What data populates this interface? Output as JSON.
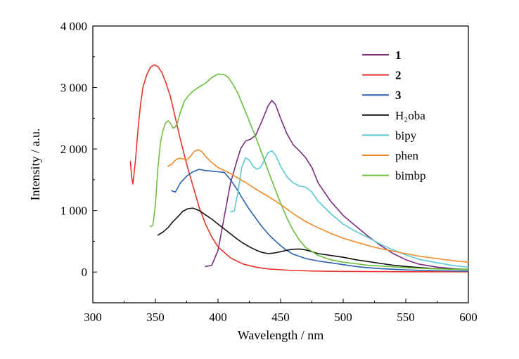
{
  "chart_data": {
    "type": "line",
    "xlabel": "Wavelength / nm",
    "ylabel": "Intensity / a.u.",
    "xlim": [
      300,
      600
    ],
    "ylim": [
      -500,
      4000
    ],
    "xticks": [
      300,
      350,
      400,
      450,
      500,
      550,
      600
    ],
    "yticks": [
      0,
      1000,
      2000,
      3000,
      4000
    ],
    "xtick_labels": [
      "300",
      "350",
      "400",
      "450",
      "500",
      "550",
      "600"
    ],
    "ytick_labels": [
      "0",
      "1 000",
      "2 000",
      "3 000",
      "4 000"
    ],
    "grid": false,
    "legend_position": "top-right",
    "series": [
      {
        "name": "1",
        "bold": true,
        "color": "#7b2d7f",
        "points": [
          [
            390,
            90
          ],
          [
            395,
            110
          ],
          [
            400,
            350
          ],
          [
            405,
            900
          ],
          [
            410,
            1450
          ],
          [
            415,
            1800
          ],
          [
            418,
            2000
          ],
          [
            422,
            2130
          ],
          [
            426,
            2160
          ],
          [
            430,
            2220
          ],
          [
            435,
            2450
          ],
          [
            440,
            2700
          ],
          [
            443,
            2790
          ],
          [
            446,
            2720
          ],
          [
            450,
            2500
          ],
          [
            455,
            2250
          ],
          [
            460,
            2070
          ],
          [
            465,
            1970
          ],
          [
            470,
            1860
          ],
          [
            475,
            1700
          ],
          [
            480,
            1450
          ],
          [
            490,
            1150
          ],
          [
            500,
            920
          ],
          [
            510,
            750
          ],
          [
            520,
            580
          ],
          [
            530,
            430
          ],
          [
            540,
            300
          ],
          [
            550,
            200
          ],
          [
            560,
            130
          ],
          [
            575,
            80
          ],
          [
            590,
            50
          ],
          [
            600,
            40
          ]
        ]
      },
      {
        "name": "2",
        "bold": true,
        "color": "#e8352a",
        "points": [
          [
            330,
            1800
          ],
          [
            331,
            1550
          ],
          [
            332,
            1430
          ],
          [
            334,
            1800
          ],
          [
            336,
            2300
          ],
          [
            338,
            2700
          ],
          [
            340,
            3000
          ],
          [
            343,
            3200
          ],
          [
            346,
            3330
          ],
          [
            349,
            3370
          ],
          [
            352,
            3340
          ],
          [
            355,
            3250
          ],
          [
            358,
            3100
          ],
          [
            362,
            2850
          ],
          [
            366,
            2500
          ],
          [
            370,
            2150
          ],
          [
            375,
            1750
          ],
          [
            380,
            1400
          ],
          [
            385,
            1050
          ],
          [
            390,
            780
          ],
          [
            395,
            570
          ],
          [
            400,
            410
          ],
          [
            410,
            230
          ],
          [
            420,
            130
          ],
          [
            430,
            80
          ],
          [
            440,
            50
          ],
          [
            460,
            25
          ],
          [
            480,
            15
          ],
          [
            500,
            10
          ],
          [
            550,
            5
          ],
          [
            600,
            5
          ]
        ]
      },
      {
        "name": "3",
        "bold": true,
        "color": "#2b5fae",
        "points": [
          [
            363,
            1320
          ],
          [
            366,
            1300
          ],
          [
            370,
            1450
          ],
          [
            375,
            1560
          ],
          [
            380,
            1630
          ],
          [
            385,
            1670
          ],
          [
            390,
            1650
          ],
          [
            395,
            1640
          ],
          [
            400,
            1630
          ],
          [
            405,
            1620
          ],
          [
            410,
            1500
          ],
          [
            415,
            1350
          ],
          [
            420,
            1180
          ],
          [
            425,
            1020
          ],
          [
            430,
            880
          ],
          [
            435,
            740
          ],
          [
            440,
            620
          ],
          [
            445,
            520
          ],
          [
            450,
            430
          ],
          [
            455,
            350
          ],
          [
            460,
            290
          ],
          [
            470,
            220
          ],
          [
            480,
            180
          ],
          [
            490,
            150
          ],
          [
            500,
            120
          ],
          [
            510,
            90
          ],
          [
            520,
            70
          ],
          [
            530,
            55
          ],
          [
            550,
            35
          ],
          [
            575,
            20
          ],
          [
            600,
            15
          ]
        ]
      },
      {
        "name": "H₂oba",
        "bold": false,
        "color": "#111111",
        "points": [
          [
            352,
            600
          ],
          [
            356,
            650
          ],
          [
            360,
            720
          ],
          [
            364,
            820
          ],
          [
            368,
            900
          ],
          [
            372,
            990
          ],
          [
            376,
            1030
          ],
          [
            380,
            1040
          ],
          [
            385,
            1000
          ],
          [
            390,
            930
          ],
          [
            395,
            860
          ],
          [
            400,
            780
          ],
          [
            405,
            700
          ],
          [
            410,
            620
          ],
          [
            415,
            540
          ],
          [
            420,
            470
          ],
          [
            425,
            410
          ],
          [
            430,
            360
          ],
          [
            435,
            320
          ],
          [
            440,
            300
          ],
          [
            445,
            310
          ],
          [
            450,
            330
          ],
          [
            455,
            355
          ],
          [
            460,
            370
          ],
          [
            465,
            375
          ],
          [
            470,
            360
          ],
          [
            475,
            330
          ],
          [
            480,
            300
          ],
          [
            490,
            270
          ],
          [
            500,
            240
          ],
          [
            510,
            200
          ],
          [
            520,
            170
          ],
          [
            530,
            140
          ],
          [
            540,
            110
          ],
          [
            550,
            90
          ],
          [
            570,
            60
          ],
          [
            600,
            40
          ]
        ]
      },
      {
        "name": "bipy",
        "bold": false,
        "color": "#5bc8d2",
        "points": [
          [
            410,
            980
          ],
          [
            413,
            990
          ],
          [
            416,
            1300
          ],
          [
            419,
            1700
          ],
          [
            422,
            1860
          ],
          [
            425,
            1820
          ],
          [
            428,
            1720
          ],
          [
            431,
            1670
          ],
          [
            434,
            1700
          ],
          [
            437,
            1820
          ],
          [
            440,
            1940
          ],
          [
            443,
            1970
          ],
          [
            446,
            1900
          ],
          [
            450,
            1720
          ],
          [
            455,
            1550
          ],
          [
            460,
            1450
          ],
          [
            465,
            1400
          ],
          [
            470,
            1380
          ],
          [
            475,
            1300
          ],
          [
            480,
            1150
          ],
          [
            490,
            950
          ],
          [
            500,
            780
          ],
          [
            510,
            660
          ],
          [
            520,
            560
          ],
          [
            530,
            450
          ],
          [
            540,
            360
          ],
          [
            550,
            280
          ],
          [
            560,
            210
          ],
          [
            575,
            150
          ],
          [
            590,
            100
          ],
          [
            600,
            80
          ]
        ]
      },
      {
        "name": "phen",
        "bold": false,
        "color": "#f08a28",
        "points": [
          [
            360,
            1720
          ],
          [
            363,
            1750
          ],
          [
            366,
            1820
          ],
          [
            369,
            1850
          ],
          [
            372,
            1840
          ],
          [
            375,
            1820
          ],
          [
            378,
            1880
          ],
          [
            381,
            1960
          ],
          [
            384,
            1990
          ],
          [
            387,
            1960
          ],
          [
            390,
            1880
          ],
          [
            395,
            1780
          ],
          [
            400,
            1700
          ],
          [
            410,
            1600
          ],
          [
            420,
            1480
          ],
          [
            430,
            1350
          ],
          [
            440,
            1230
          ],
          [
            450,
            1100
          ],
          [
            460,
            950
          ],
          [
            470,
            820
          ],
          [
            480,
            720
          ],
          [
            490,
            630
          ],
          [
            500,
            550
          ],
          [
            510,
            490
          ],
          [
            520,
            430
          ],
          [
            530,
            380
          ],
          [
            540,
            340
          ],
          [
            550,
            300
          ],
          [
            560,
            260
          ],
          [
            575,
            220
          ],
          [
            590,
            180
          ],
          [
            600,
            160
          ]
        ]
      },
      {
        "name": "bimbp",
        "bold": false,
        "color": "#6abf40",
        "points": [
          [
            346,
            740
          ],
          [
            348,
            760
          ],
          [
            350,
            1100
          ],
          [
            352,
            1700
          ],
          [
            354,
            2100
          ],
          [
            356,
            2300
          ],
          [
            358,
            2420
          ],
          [
            360,
            2460
          ],
          [
            362,
            2420
          ],
          [
            364,
            2340
          ],
          [
            366,
            2360
          ],
          [
            368,
            2450
          ],
          [
            370,
            2600
          ],
          [
            373,
            2770
          ],
          [
            376,
            2860
          ],
          [
            380,
            2940
          ],
          [
            385,
            3010
          ],
          [
            390,
            3070
          ],
          [
            395,
            3160
          ],
          [
            400,
            3220
          ],
          [
            405,
            3210
          ],
          [
            408,
            3170
          ],
          [
            412,
            3050
          ],
          [
            416,
            2900
          ],
          [
            420,
            2700
          ],
          [
            425,
            2450
          ],
          [
            430,
            2200
          ],
          [
            435,
            1930
          ],
          [
            440,
            1650
          ],
          [
            445,
            1380
          ],
          [
            450,
            1120
          ],
          [
            455,
            880
          ],
          [
            460,
            680
          ],
          [
            465,
            520
          ],
          [
            470,
            400
          ],
          [
            480,
            270
          ],
          [
            490,
            200
          ],
          [
            500,
            160
          ],
          [
            520,
            110
          ],
          [
            550,
            70
          ],
          [
            575,
            50
          ],
          [
            600,
            40
          ]
        ]
      }
    ]
  }
}
